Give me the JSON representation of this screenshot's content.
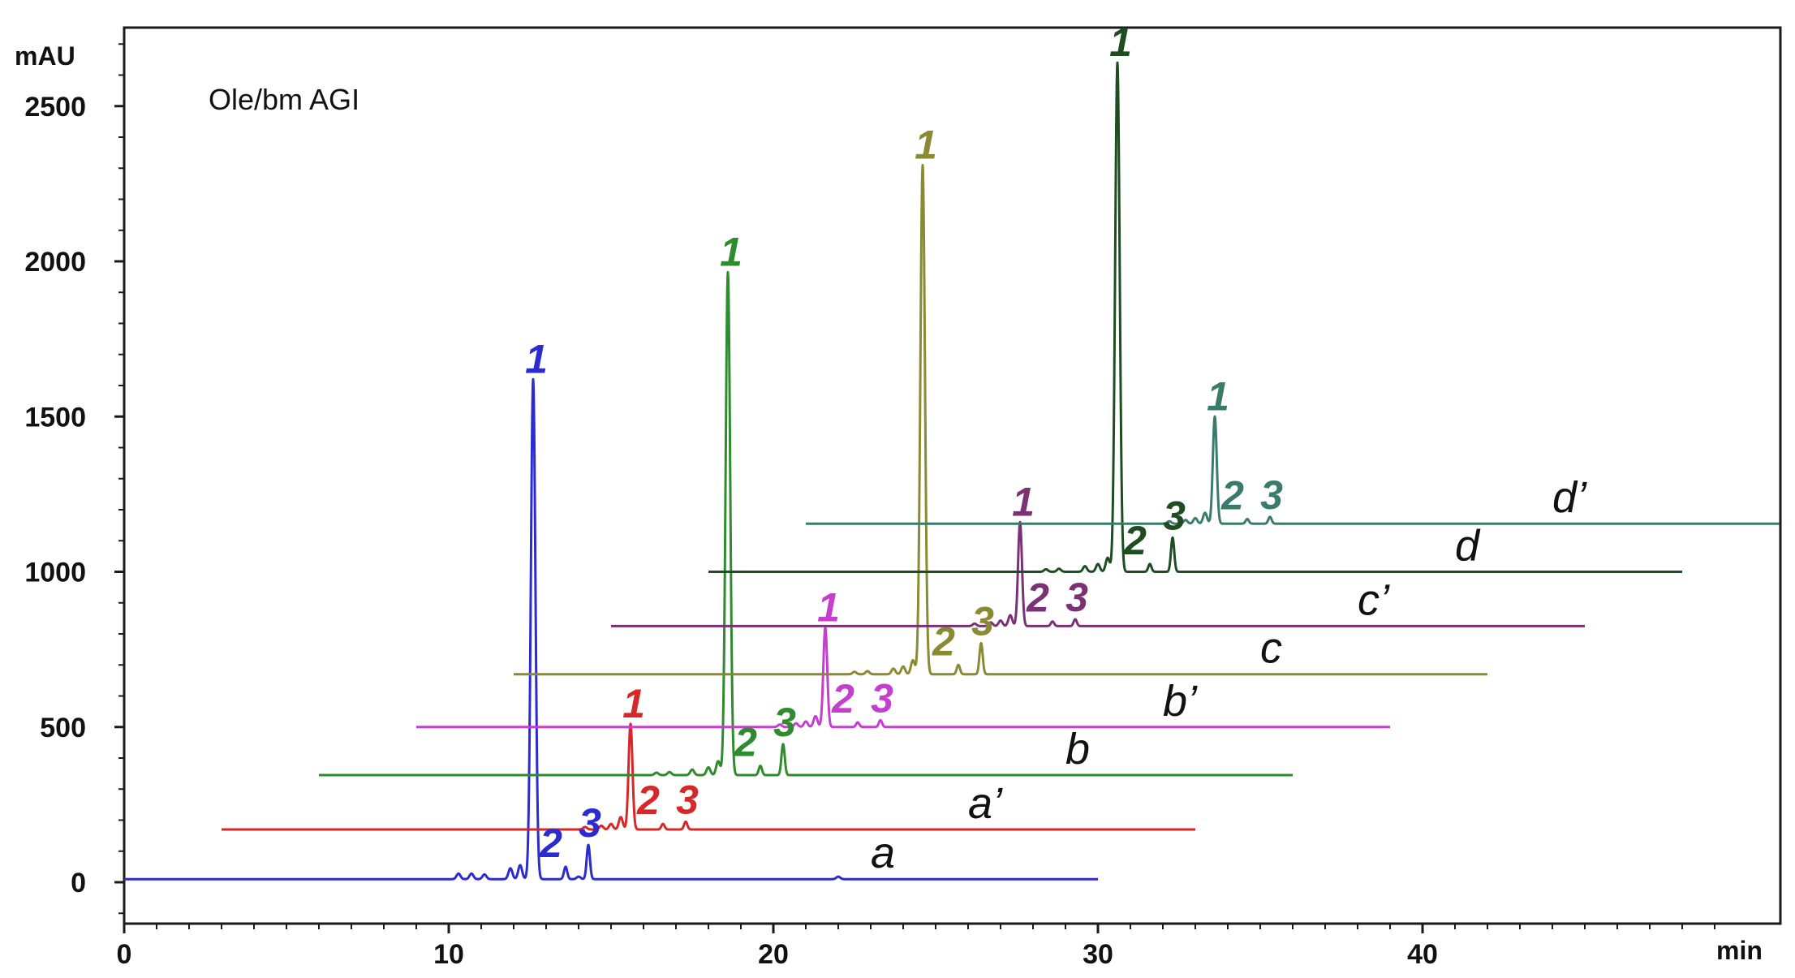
{
  "chart_data": {
    "type": "line",
    "title": "Ole/bm AGI",
    "ylabel": "mAU",
    "xlabel": "min",
    "xlim": [
      0,
      51
    ],
    "ylim": [
      -120,
      2750
    ],
    "x_ticks": [
      0,
      10,
      20,
      30,
      40
    ],
    "y_ticks": [
      0,
      500,
      1000,
      1500,
      2000,
      2500
    ],
    "grid": false,
    "series": [
      {
        "name": "a",
        "color": "#2b2bd0",
        "x_start": 0,
        "x_end": 30,
        "baseline": 10,
        "peaks": [
          {
            "label": "1",
            "x": 12.6,
            "height": 1610,
            "width": 0.07
          },
          {
            "label": "2",
            "x": 13.6,
            "height": 40,
            "width": 0.05
          },
          {
            "label": "3",
            "x": 14.3,
            "height": 110,
            "width": 0.05
          }
        ],
        "minor_peaks": [
          [
            10.3,
            18
          ],
          [
            10.7,
            18
          ],
          [
            11.1,
            15
          ],
          [
            11.9,
            35
          ],
          [
            12.2,
            45
          ],
          [
            14.0,
            8
          ],
          [
            22.0,
            8
          ]
        ]
      },
      {
        "name": "a’",
        "color": "#d62828",
        "x_start": 3,
        "x_end": 33,
        "baseline": 170,
        "peaks": [
          {
            "label": "1",
            "x": 15.6,
            "height": 340,
            "width": 0.06
          },
          {
            "label": "2",
            "x": 16.6,
            "height": 18,
            "width": 0.05
          },
          {
            "label": "3",
            "x": 17.3,
            "height": 25,
            "width": 0.05
          }
        ],
        "minor_peaks": [
          [
            14.2,
            8
          ],
          [
            14.7,
            12
          ],
          [
            15.0,
            18
          ],
          [
            15.3,
            40
          ]
        ]
      },
      {
        "name": "b",
        "color": "#2e8b2e",
        "x_start": 6,
        "x_end": 36,
        "baseline": 345,
        "peaks": [
          {
            "label": "1",
            "x": 18.6,
            "height": 1620,
            "width": 0.07
          },
          {
            "label": "2",
            "x": 19.6,
            "height": 30,
            "width": 0.05
          },
          {
            "label": "3",
            "x": 20.3,
            "height": 100,
            "width": 0.05
          }
        ],
        "minor_peaks": [
          [
            16.4,
            8
          ],
          [
            16.8,
            10
          ],
          [
            17.5,
            18
          ],
          [
            18.0,
            25
          ],
          [
            18.3,
            45
          ]
        ]
      },
      {
        "name": "b’",
        "color": "#c53fcf",
        "x_start": 9,
        "x_end": 39,
        "baseline": 500,
        "peaks": [
          {
            "label": "1",
            "x": 21.6,
            "height": 320,
            "width": 0.06
          },
          {
            "label": "2",
            "x": 22.6,
            "height": 15,
            "width": 0.05
          },
          {
            "label": "3",
            "x": 23.3,
            "height": 22,
            "width": 0.05
          }
        ],
        "minor_peaks": [
          [
            20.2,
            8
          ],
          [
            20.7,
            12
          ],
          [
            21.0,
            18
          ],
          [
            21.3,
            35
          ]
        ]
      },
      {
        "name": "c",
        "color": "#8a8a32",
        "x_start": 12,
        "x_end": 42,
        "baseline": 670,
        "peaks": [
          {
            "label": "1",
            "x": 24.6,
            "height": 1640,
            "width": 0.07
          },
          {
            "label": "2",
            "x": 25.7,
            "height": 30,
            "width": 0.05
          },
          {
            "label": "3",
            "x": 26.4,
            "height": 100,
            "width": 0.05
          }
        ],
        "minor_peaks": [
          [
            22.5,
            8
          ],
          [
            22.9,
            10
          ],
          [
            23.7,
            18
          ],
          [
            24.0,
            25
          ],
          [
            24.3,
            45
          ]
        ]
      },
      {
        "name": "c’",
        "color": "#7a3276",
        "x_start": 15,
        "x_end": 45,
        "baseline": 825,
        "peaks": [
          {
            "label": "1",
            "x": 27.6,
            "height": 335,
            "width": 0.06
          },
          {
            "label": "2",
            "x": 28.6,
            "height": 15,
            "width": 0.05
          },
          {
            "label": "3",
            "x": 29.3,
            "height": 22,
            "width": 0.05
          }
        ],
        "minor_peaks": [
          [
            26.2,
            8
          ],
          [
            26.7,
            12
          ],
          [
            27.0,
            18
          ],
          [
            27.3,
            35
          ]
        ]
      },
      {
        "name": "d",
        "color": "#1e4d22",
        "x_start": 18,
        "x_end": 48,
        "baseline": 1000,
        "peaks": [
          {
            "label": "1",
            "x": 30.6,
            "height": 1640,
            "width": 0.07
          },
          {
            "label": "2",
            "x": 31.6,
            "height": 25,
            "width": 0.05
          },
          {
            "label": "3",
            "x": 32.3,
            "height": 110,
            "width": 0.05
          }
        ],
        "minor_peaks": [
          [
            28.4,
            8
          ],
          [
            28.8,
            10
          ],
          [
            29.6,
            18
          ],
          [
            30.0,
            25
          ],
          [
            30.3,
            45
          ]
        ]
      },
      {
        "name": "d’",
        "color": "#3a7b6e",
        "x_start": 21,
        "x_end": 51,
        "baseline": 1155,
        "peaks": [
          {
            "label": "1",
            "x": 33.6,
            "height": 345,
            "width": 0.06
          },
          {
            "label": "2",
            "x": 34.6,
            "height": 15,
            "width": 0.05
          },
          {
            "label": "3",
            "x": 35.3,
            "height": 22,
            "width": 0.05
          }
        ],
        "minor_peaks": [
          [
            32.2,
            8
          ],
          [
            32.7,
            12
          ],
          [
            33.0,
            18
          ],
          [
            33.3,
            35
          ]
        ]
      }
    ]
  }
}
